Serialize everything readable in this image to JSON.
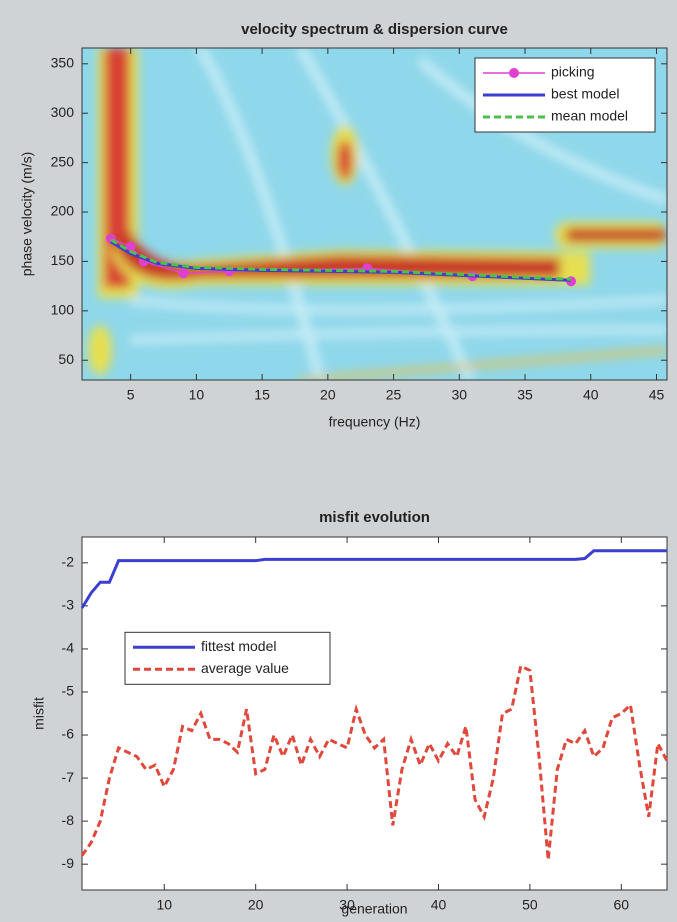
{
  "chart_data": [
    {
      "type": "line",
      "title": "velocity spectrum & dispersion curve",
      "xlabel": "frequency (Hz)",
      "ylabel": "phase velocity (m/s)",
      "xlim": [
        1.3,
        45.8
      ],
      "ylim": [
        30,
        366
      ],
      "xticks": [
        5,
        10,
        15,
        20,
        25,
        30,
        35,
        40,
        45
      ],
      "yticks": [
        50,
        100,
        150,
        200,
        250,
        300,
        350
      ],
      "legend": "upper right",
      "series": [
        {
          "name": "picking",
          "color": "#e040d0",
          "marker": "circle",
          "linestyle": "solid",
          "x": [
            3.5,
            5,
            6,
            9,
            12.5,
            23,
            31,
            38.5
          ],
          "values": [
            173,
            165,
            150,
            138,
            140,
            143,
            135,
            130
          ]
        },
        {
          "name": "best model",
          "color": "#3a3fd0",
          "linestyle": "solid",
          "x": [
            3.5,
            5,
            7,
            10,
            15,
            20,
            25,
            30,
            35,
            38.5
          ],
          "values": [
            170,
            158,
            148,
            143,
            141,
            140,
            139,
            136,
            133,
            131
          ]
        },
        {
          "name": "mean model",
          "color": "#4cc24c",
          "linestyle": "dashed",
          "x": [
            3.5,
            5,
            7,
            10,
            15,
            20,
            25,
            30,
            35,
            38.5
          ],
          "values": [
            172,
            160,
            149,
            144,
            142,
            141,
            140,
            137,
            134,
            132
          ]
        }
      ]
    },
    {
      "type": "line",
      "title": "misfit evolution",
      "xlabel": "generation",
      "ylabel": "misfit",
      "xlim": [
        1,
        65
      ],
      "ylim": [
        -9.6,
        -1.4
      ],
      "xticks": [
        10,
        20,
        30,
        40,
        50,
        60
      ],
      "yticks": [
        -2,
        -3,
        -4,
        -5,
        -6,
        -7,
        -8,
        -9
      ],
      "legend": "center left",
      "x": [
        1,
        2,
        3,
        4,
        5,
        6,
        7,
        8,
        9,
        10,
        11,
        12,
        13,
        14,
        15,
        16,
        17,
        18,
        19,
        20,
        21,
        22,
        23,
        24,
        25,
        26,
        27,
        28,
        29,
        30,
        31,
        32,
        33,
        34,
        35,
        36,
        37,
        38,
        39,
        40,
        41,
        42,
        43,
        44,
        45,
        46,
        47,
        48,
        49,
        50,
        51,
        52,
        53,
        54,
        55,
        56,
        57,
        58,
        59,
        60,
        61,
        62,
        63,
        64,
        65
      ],
      "series": [
        {
          "name": "fittest model",
          "color": "#3a3fd0",
          "linestyle": "solid",
          "values": [
            -3.05,
            -2.7,
            -2.45,
            -2.45,
            -1.95,
            -1.95,
            -1.95,
            -1.95,
            -1.95,
            -1.95,
            -1.95,
            -1.95,
            -1.95,
            -1.95,
            -1.95,
            -1.95,
            -1.95,
            -1.95,
            -1.95,
            -1.95,
            -1.92,
            -1.92,
            -1.92,
            -1.92,
            -1.92,
            -1.92,
            -1.92,
            -1.92,
            -1.92,
            -1.92,
            -1.92,
            -1.92,
            -1.92,
            -1.92,
            -1.92,
            -1.92,
            -1.92,
            -1.92,
            -1.92,
            -1.92,
            -1.92,
            -1.92,
            -1.92,
            -1.92,
            -1.92,
            -1.92,
            -1.92,
            -1.92,
            -1.92,
            -1.92,
            -1.92,
            -1.92,
            -1.92,
            -1.92,
            -1.92,
            -1.9,
            -1.72,
            -1.72,
            -1.72,
            -1.72,
            -1.72,
            -1.72,
            -1.72,
            -1.72,
            -1.72
          ]
        },
        {
          "name": "average value",
          "color": "#e0483c",
          "linestyle": "dashed",
          "values": [
            -8.8,
            -8.5,
            -8.0,
            -7.0,
            -6.3,
            -6.4,
            -6.5,
            -6.8,
            -6.7,
            -7.2,
            -6.8,
            -5.8,
            -5.9,
            -5.5,
            -6.1,
            -6.1,
            -6.2,
            -6.4,
            -5.4,
            -6.9,
            -6.8,
            -6.0,
            -6.5,
            -6.0,
            -6.7,
            -6.1,
            -6.5,
            -6.1,
            -6.2,
            -6.3,
            -5.4,
            -6.0,
            -6.3,
            -6.1,
            -8.1,
            -6.8,
            -6.1,
            -6.7,
            -6.2,
            -6.6,
            -6.2,
            -6.5,
            -5.8,
            -7.5,
            -7.9,
            -7.0,
            -5.5,
            -5.4,
            -4.4,
            -4.5,
            -6.5,
            -8.9,
            -6.8,
            -6.1,
            -6.2,
            -5.9,
            -6.5,
            -6.3,
            -5.6,
            -5.5,
            -5.3,
            -6.7,
            -7.9,
            -6.2,
            -6.6
          ]
        }
      ]
    }
  ]
}
